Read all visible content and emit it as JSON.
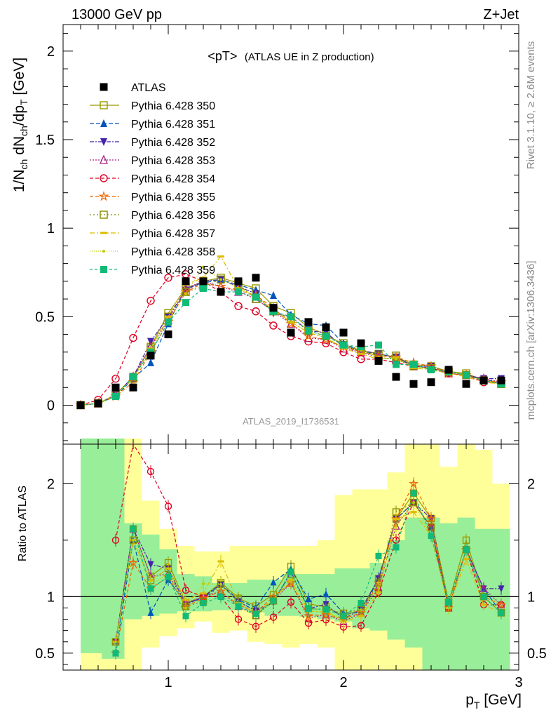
{
  "header": {
    "energy_label": "13000 GeV pp",
    "process_label": "Z+Jet",
    "title_main": "<pT>",
    "title_sub": "(ATLAS UE in Z production)",
    "watermark": "ATLAS_2019_I1736531",
    "side_rivet": "Rivet 3.1.10, ≥ 2.6M events",
    "side_mcplots": "mcplots.cern.ch [arXiv:1306.3436]"
  },
  "axes": {
    "ylabel_main": "1/N_ch dN_ch/dp_T [GeV]",
    "ylabel_ratio": "Ratio to ATLAS",
    "xlabel": "p_T [GeV]",
    "x_ticks": [
      "1",
      "2",
      "3"
    ],
    "y_ticks_main": [
      "0",
      "0.5",
      "1",
      "1.5",
      "2"
    ],
    "y_ticks_ratio": [
      "0.5",
      "1",
      "2"
    ]
  },
  "chart_data": {
    "type": "line",
    "xlim": [
      0.4,
      3.0
    ],
    "ylim_main": [
      -0.22,
      2.15
    ],
    "ylim_ratio": [
      0.35,
      2.35
    ],
    "x": [
      0.5,
      0.6,
      0.7,
      0.8,
      0.9,
      1.0,
      1.1,
      1.2,
      1.3,
      1.4,
      1.5,
      1.6,
      1.7,
      1.8,
      1.9,
      2.0,
      2.1,
      2.2,
      2.3,
      2.4,
      2.5,
      2.6,
      2.7,
      2.8,
      2.9
    ],
    "data": {
      "name": "ATLAS",
      "values": [
        0.0,
        0.01,
        0.1,
        0.1,
        0.28,
        0.4,
        0.7,
        0.7,
        0.64,
        0.7,
        0.72,
        0.55,
        0.41,
        0.47,
        0.44,
        0.41,
        0.35,
        0.25,
        0.16,
        0.12,
        0.13,
        0.2,
        0.12,
        0.14,
        0.14
      ]
    },
    "series": [
      {
        "name": "Pythia 6.428 350",
        "color": "#999900",
        "marker": "square-open",
        "dash": "",
        "values": [
          0.0,
          0.01,
          0.06,
          0.16,
          0.33,
          0.52,
          0.66,
          0.7,
          0.72,
          0.69,
          0.66,
          0.56,
          0.52,
          0.44,
          0.4,
          0.34,
          0.31,
          0.29,
          0.27,
          0.23,
          0.22,
          0.19,
          0.18,
          0.14,
          0.12
        ]
      },
      {
        "name": "Pythia 6.428 351",
        "color": "#0055bb",
        "marker": "triangle-up",
        "dash": "6,3",
        "values": [
          0.0,
          0.01,
          0.05,
          0.15,
          0.24,
          0.46,
          0.66,
          0.69,
          0.71,
          0.68,
          0.65,
          0.62,
          0.51,
          0.46,
          0.45,
          0.35,
          0.3,
          0.29,
          0.27,
          0.22,
          0.21,
          0.18,
          0.17,
          0.15,
          0.12
        ]
      },
      {
        "name": "Pythia 6.428 352",
        "color": "#4422aa",
        "marker": "triangle-down",
        "dash": "6,2,2,2",
        "values": [
          0.0,
          0.01,
          0.06,
          0.16,
          0.36,
          0.5,
          0.65,
          0.7,
          0.71,
          0.67,
          0.63,
          0.52,
          0.5,
          0.42,
          0.41,
          0.33,
          0.31,
          0.29,
          0.27,
          0.22,
          0.22,
          0.18,
          0.17,
          0.15,
          0.15
        ]
      },
      {
        "name": "Pythia 6.428 353",
        "color": "#aa2288",
        "marker": "triangle-up-open",
        "dash": "2,2",
        "values": [
          0.0,
          0.01,
          0.06,
          0.16,
          0.33,
          0.48,
          0.66,
          0.7,
          0.67,
          0.64,
          0.6,
          0.53,
          0.46,
          0.38,
          0.37,
          0.32,
          0.3,
          0.27,
          0.26,
          0.22,
          0.21,
          0.18,
          0.17,
          0.15,
          0.13
        ]
      },
      {
        "name": "Pythia 6.428 354",
        "color": "#dd0022",
        "marker": "circle-open",
        "dash": "5,3",
        "values": [
          0.0,
          0.03,
          0.15,
          0.38,
          0.59,
          0.72,
          0.74,
          0.7,
          0.64,
          0.56,
          0.53,
          0.45,
          0.39,
          0.36,
          0.35,
          0.3,
          0.26,
          0.26,
          0.24,
          0.22,
          0.21,
          0.18,
          0.17,
          0.13,
          0.13
        ]
      },
      {
        "name": "Pythia 6.428 355",
        "color": "#ee6600",
        "marker": "star-open",
        "dash": "5,3",
        "values": [
          0.0,
          0.01,
          0.05,
          0.13,
          0.3,
          0.47,
          0.64,
          0.69,
          0.67,
          0.65,
          0.62,
          0.55,
          0.46,
          0.39,
          0.37,
          0.33,
          0.3,
          0.28,
          0.27,
          0.24,
          0.22,
          0.18,
          0.17,
          0.14,
          0.13
        ]
      },
      {
        "name": "Pythia 6.428 356",
        "color": "#888800",
        "marker": "square-open",
        "dash": "2,3",
        "values": [
          0.0,
          0.01,
          0.06,
          0.15,
          0.32,
          0.5,
          0.64,
          0.67,
          0.71,
          0.68,
          0.6,
          0.53,
          0.49,
          0.42,
          0.39,
          0.35,
          0.31,
          0.28,
          0.28,
          0.22,
          0.21,
          0.19,
          0.17,
          0.14,
          0.12
        ]
      },
      {
        "name": "Pythia 6.428 357",
        "color": "#ddbb00",
        "marker": "dash",
        "dash": "7,3,2,3",
        "values": [
          0.0,
          0.01,
          0.06,
          0.15,
          0.32,
          0.5,
          0.68,
          0.72,
          0.84,
          0.66,
          0.61,
          0.54,
          0.47,
          0.41,
          0.38,
          0.32,
          0.29,
          0.26,
          0.27,
          0.21,
          0.2,
          0.18,
          0.16,
          0.13,
          0.12
        ]
      },
      {
        "name": "Pythia 6.428 358",
        "color": "#bbcc00",
        "marker": "dot",
        "dash": "1,2",
        "values": [
          0.0,
          0.01,
          0.06,
          0.15,
          0.31,
          0.48,
          0.63,
          0.78,
          0.71,
          0.66,
          0.62,
          0.53,
          0.47,
          0.41,
          0.38,
          0.33,
          0.31,
          0.27,
          0.26,
          0.22,
          0.2,
          0.18,
          0.17,
          0.14,
          0.12
        ]
      },
      {
        "name": "Pythia 6.428 359",
        "color": "#11bb77",
        "marker": "square",
        "dash": "4,3",
        "values": [
          0.0,
          0.01,
          0.05,
          0.16,
          0.3,
          0.47,
          0.58,
          0.66,
          0.64,
          0.64,
          0.61,
          0.53,
          0.5,
          0.42,
          0.39,
          0.34,
          0.33,
          0.34,
          0.23,
          0.23,
          0.2,
          0.19,
          0.17,
          0.14,
          0.12
        ]
      }
    ],
    "ratio_band": {
      "inner": [
        [
          0.5,
          0.62,
          0.5,
          2.4
        ],
        [
          0.62,
          0.75,
          0.45,
          2.4
        ],
        [
          0.75,
          0.85,
          0.8,
          1.65
        ],
        [
          0.85,
          0.95,
          0.83,
          1.55
        ],
        [
          0.95,
          1.05,
          0.85,
          1.42
        ],
        [
          1.05,
          1.15,
          0.87,
          1.2
        ],
        [
          1.15,
          1.25,
          0.87,
          1.18
        ],
        [
          1.25,
          1.35,
          0.88,
          1.12
        ],
        [
          1.35,
          1.45,
          0.88,
          1.12
        ],
        [
          1.45,
          1.55,
          0.86,
          1.15
        ],
        [
          1.55,
          1.65,
          0.83,
          1.15
        ],
        [
          1.65,
          1.75,
          0.83,
          1.2
        ],
        [
          1.75,
          1.85,
          0.82,
          1.2
        ],
        [
          1.85,
          1.95,
          0.8,
          1.2
        ],
        [
          1.95,
          2.05,
          0.78,
          1.25
        ],
        [
          2.05,
          2.15,
          0.72,
          1.25
        ],
        [
          2.15,
          2.25,
          0.7,
          1.3
        ],
        [
          2.25,
          2.35,
          0.62,
          1.5
        ],
        [
          2.35,
          2.45,
          0.55,
          1.7
        ],
        [
          2.45,
          2.55,
          0.35,
          1.7
        ],
        [
          2.55,
          2.65,
          0.35,
          1.65
        ],
        [
          2.65,
          2.75,
          0.35,
          1.7
        ],
        [
          2.75,
          2.85,
          0.35,
          1.6
        ],
        [
          2.85,
          2.95,
          0.35,
          1.6
        ]
      ],
      "outer": [
        [
          0.5,
          0.62,
          0.35,
          2.4
        ],
        [
          0.62,
          0.75,
          0.35,
          2.4
        ],
        [
          0.75,
          0.85,
          0.35,
          2.4
        ],
        [
          0.85,
          0.95,
          0.55,
          1.85
        ],
        [
          0.95,
          1.05,
          0.65,
          1.6
        ],
        [
          1.05,
          1.15,
          0.72,
          1.45
        ],
        [
          1.15,
          1.25,
          0.78,
          1.4
        ],
        [
          1.25,
          1.35,
          0.68,
          1.4
        ],
        [
          1.35,
          1.45,
          0.7,
          1.45
        ],
        [
          1.45,
          1.55,
          0.6,
          1.45
        ],
        [
          1.55,
          1.65,
          0.58,
          1.45
        ],
        [
          1.65,
          1.75,
          0.55,
          1.45
        ],
        [
          1.75,
          1.85,
          0.58,
          1.45
        ],
        [
          1.85,
          1.95,
          0.55,
          1.5
        ],
        [
          1.95,
          2.05,
          0.35,
          1.9
        ],
        [
          2.05,
          2.15,
          0.35,
          1.95
        ],
        [
          2.15,
          2.25,
          0.35,
          1.95
        ],
        [
          2.25,
          2.35,
          0.35,
          2.1
        ],
        [
          2.35,
          2.45,
          0.35,
          2.35
        ],
        [
          2.45,
          2.55,
          0.35,
          2.35
        ],
        [
          2.55,
          2.65,
          0.35,
          2.15
        ],
        [
          2.65,
          2.75,
          0.35,
          2.35
        ],
        [
          2.75,
          2.85,
          0.35,
          2.3
        ],
        [
          2.85,
          2.95,
          0.35,
          2.0
        ]
      ]
    },
    "colors": {
      "inner_band": "#99ee99",
      "outer_band": "#ffff99"
    }
  }
}
